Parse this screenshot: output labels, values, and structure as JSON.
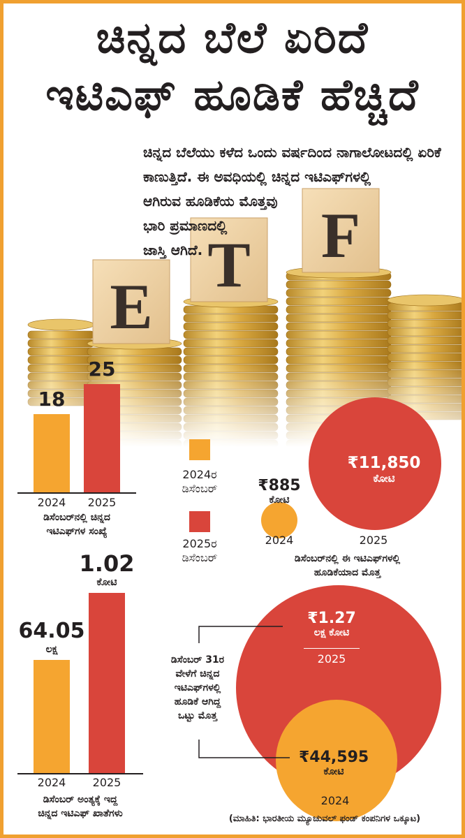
{
  "title": {
    "line1": "ಚಿನ್ನದ ಬೆಲೆ ಏರಿದೆ",
    "line2": "ಇಟಿಎಫ್ ಹೂಡಿಕೆ ಹೆಚ್ಚಿದೆ"
  },
  "intro": {
    "lines": [
      "ಚಿನ್ನದ ಬೆಲೆಯು ಕಳೆದ ಒಂದು ವರ್ಷದಿಂದ ನಾಗಾಲೋಟದಲ್ಲಿ ಏರಿಕೆ",
      "ಕಾಣುತ್ತಿದೆ. ಈ ಅವಧಿಯಲ್ಲಿ ಚಿನ್ನದ ಇಟಿಎಫ್‌ಗಳಲ್ಲಿ",
      "ಆಗಿರುವ ಹೂಡಿಕೆಯ ಮೊತ್ತವು",
      "ಭಾರಿ ಪ್ರಮಾಣದಲ್ಲಿ",
      "ಜಾಸ್ತಿ ಆಗಿದೆ."
    ]
  },
  "photo": {
    "letters": [
      "E",
      "T",
      "F"
    ]
  },
  "colors": {
    "y2024": "#f5a530",
    "y2025": "#d9453b",
    "border": "#f0a030",
    "text": "#231f20"
  },
  "legend": {
    "y2024_line1": "2024ರ",
    "y2024_line2": "ಡಿಸೆಂಬರ್",
    "y2025_line1": "2025ರ",
    "y2025_line2": "ಡಿಸೆಂಬರ್"
  },
  "chart_data": [
    {
      "type": "bar",
      "categories": [
        "2024",
        "2025"
      ],
      "values": [
        18,
        25
      ],
      "labels": [
        "18",
        "25"
      ],
      "unit": "",
      "caption_lines": [
        "ಡಿಸೆಂಬರ್‌ನಲ್ಲಿ ಚಿನ್ನದ",
        "ಇಟಿಎಫ್‌ಗಳ ಸಂಖ್ಯೆ"
      ]
    },
    {
      "type": "bubble",
      "categories": [
        "2024",
        "2025"
      ],
      "values": [
        885,
        11850
      ],
      "labels": [
        "₹885",
        "₹11,850"
      ],
      "unit_lines": [
        "ಕೋಟಿ",
        "ಕೋಟಿ"
      ],
      "caption_lines": [
        "ಡಿಸೆಂಬರ್‌ನಲ್ಲಿ ಈ ಇಟಿಎಫ್‌ಗಳಲ್ಲಿ",
        "ಹೂಡಿಕೆಯಾದ ಮೊತ್ತ"
      ]
    },
    {
      "type": "bar",
      "categories": [
        "2024",
        "2025"
      ],
      "values": [
        64.05,
        102
      ],
      "labels": [
        "64.05",
        "1.02"
      ],
      "unit_lines": [
        "ಲಕ್ಷ",
        "ಕೋಟಿ"
      ],
      "caption_lines": [
        "ಡಿಸೆಂಬರ್ ಅಂತ್ಯಕ್ಕೆ ಇದ್ದ",
        "ಚಿನ್ನದ ಇಟಿಎಫ್ ಖಾತೆಗಳು"
      ]
    },
    {
      "type": "bubble",
      "categories": [
        "2024",
        "2025"
      ],
      "values": [
        44595,
        127000
      ],
      "labels": [
        "₹44,595",
        "₹1.27"
      ],
      "unit_lines": [
        "ಕೋಟಿ",
        "ಲಕ್ಷ ಕೋಟಿ"
      ],
      "caption_lines": [
        "ಡಿಸೆಂಬರ್ 31ರ",
        "ವೇಳೆಗೆ ಚಿನ್ನದ",
        "ಇಟಿಎಫ್‌ಗಳಲ್ಲಿ",
        "ಹೂಡಿಕೆ ಆಗಿದ್ದ",
        "ಒಟ್ಟು ಮೊತ್ತ"
      ]
    }
  ],
  "source": "(ಮಾಹಿತಿ: ಭಾರತೀಯ ಮ್ಯೂಚುವಲ್ ಫಂಡ್ ಕಂಪನಿಗಳ ಒಕ್ಕೂಟ)"
}
